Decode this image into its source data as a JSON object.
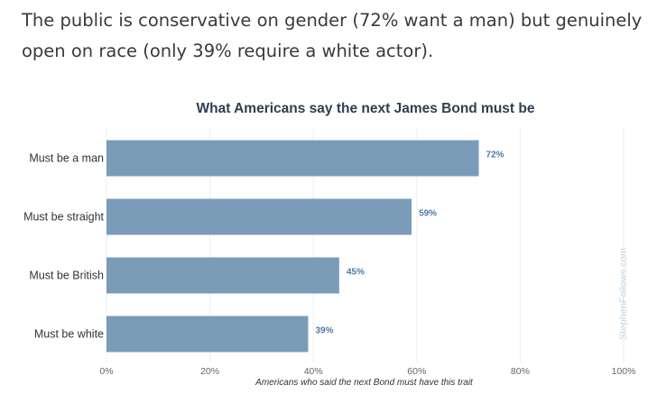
{
  "intro_text": "The public is conservative on gender (72% want a man) but genuinely open on race (only 39% require a white actor).",
  "watermark": "StephenFollows.com",
  "colors": {
    "bar": "#7a9cb8",
    "data_label": "#4f7ba3",
    "grid": "#eeeeee"
  },
  "chart_data": {
    "type": "bar",
    "orientation": "horizontal",
    "title": "What Americans say the next James Bond must be",
    "xlabel": "Americans who said the next Bond must have this trait",
    "ylabel": "",
    "categories": [
      "Must be a man",
      "Must be straight",
      "Must be British",
      "Must be white"
    ],
    "values": [
      72,
      59,
      45,
      39
    ],
    "value_labels": [
      "72%",
      "59%",
      "45%",
      "39%"
    ],
    "xlim": [
      0,
      100
    ],
    "x_ticks": [
      0,
      20,
      40,
      60,
      80,
      100
    ],
    "x_tick_labels": [
      "0%",
      "20%",
      "40%",
      "60%",
      "80%",
      "100%"
    ],
    "grid": true
  }
}
